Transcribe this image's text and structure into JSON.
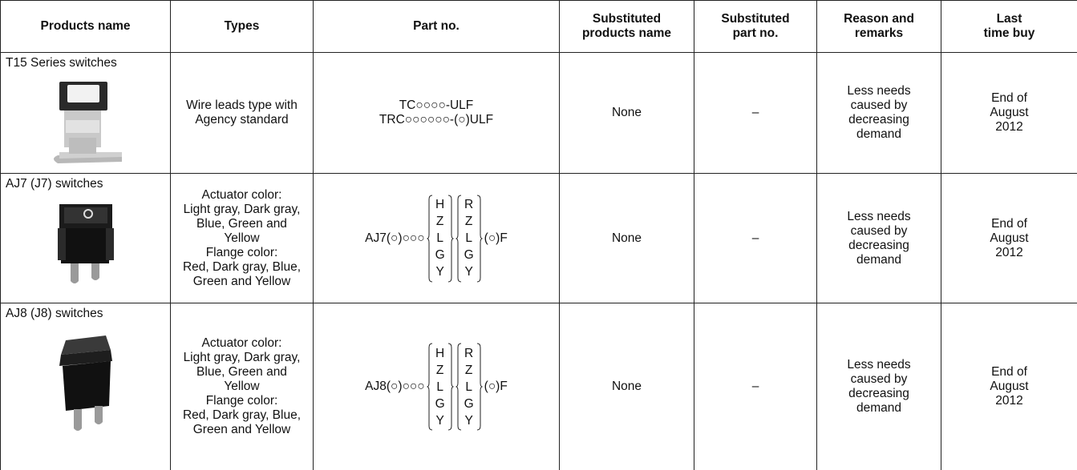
{
  "table": {
    "header": [
      [
        "Products name"
      ],
      [
        "Types"
      ],
      [
        "Part no."
      ],
      [
        "Substituted",
        "products name"
      ],
      [
        "Substituted",
        "part no."
      ],
      [
        "Reason and",
        "remarks"
      ],
      [
        "Last",
        "time buy"
      ]
    ],
    "rows": [
      {
        "product": "T15 Series switches",
        "types": [
          "Wire leads type with",
          "Agency standard"
        ],
        "part_no": {
          "lines": [
            "TC○○○○-ULF",
            "TRC○○○○○○-(○)ULF"
          ]
        },
        "substituted_name": "None",
        "substituted_part": "–",
        "reason": [
          "Less needs",
          "caused by",
          "decreasing",
          "demand"
        ],
        "last_buy": [
          "End of",
          "August",
          "2012"
        ]
      },
      {
        "product": "AJ7 (J7) switches",
        "types": [
          "Actuator color:",
          "Light gray, Dark gray,",
          "Blue, Green and",
          "Yellow",
          "Flange color:",
          "Red, Dark gray, Blue,",
          "Green and Yellow"
        ],
        "part_no": {
          "prefix": "AJ7(○)○○○",
          "group1": [
            "H",
            "Z",
            "L",
            "G",
            "Y"
          ],
          "group2": [
            "R",
            "Z",
            "L",
            "G",
            "Y"
          ],
          "suffix": "(○)F"
        },
        "substituted_name": "None",
        "substituted_part": "–",
        "reason": [
          "Less needs",
          "caused by",
          "decreasing",
          "demand"
        ],
        "last_buy": [
          "End of",
          "August",
          "2012"
        ]
      },
      {
        "product": "AJ8 (J8) switches",
        "types": [
          "Actuator color:",
          "Light gray, Dark gray,",
          "Blue, Green and",
          "Yellow",
          "Flange color:",
          "Red, Dark gray, Blue,",
          "Green and Yellow"
        ],
        "part_no": {
          "prefix": "AJ8(○)○○○",
          "group1": [
            "H",
            "Z",
            "L",
            "G",
            "Y"
          ],
          "group2": [
            "R",
            "Z",
            "L",
            "G",
            "Y"
          ],
          "suffix": "(○)F"
        },
        "substituted_name": "None",
        "substituted_part": "–",
        "reason": [
          "Less needs",
          "caused by",
          "decreasing",
          "demand"
        ],
        "last_buy": [
          "End of",
          "August",
          "2012"
        ]
      }
    ]
  }
}
